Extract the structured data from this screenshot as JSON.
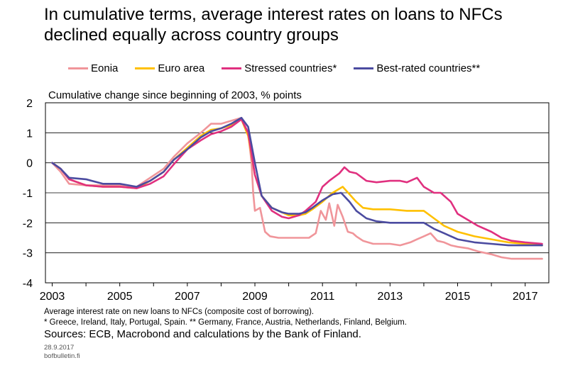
{
  "title_line1": "In cumulative terms, average interest rates on loans to NFCs",
  "title_line2": "declined equally across country groups",
  "colors": {
    "eonia": "#f0959a",
    "euro_area": "#ffc000",
    "stressed": "#e0307f",
    "best_rated": "#4b4ba0",
    "axis": "#000000",
    "grid": "#000000"
  },
  "footnote_line1": "Average interest rate on new loans to NFCs (composite cost of borrowing).",
  "footnote_line2": "* Greece, Ireland, Italy, Portugal, Spain. ** Germany, France, Austria, Netherlands, Finland, Belgium.",
  "sources": "Sources: ECB, Macrobond and calculations by the Bank of Finland.",
  "date": "28.9.2017",
  "site": "bofbulletin.fi",
  "chart_data": {
    "type": "line",
    "ylabel": "Cumulative change since beginning of 2003, % points",
    "ylim": [
      -4,
      2
    ],
    "xlim": [
      2002.8,
      2017.7
    ],
    "yticks": [
      "2",
      "1",
      "0",
      "-1",
      "-2",
      "-3",
      "-4"
    ],
    "ytick_values": [
      2,
      1,
      0,
      -1,
      -2,
      -3,
      -4
    ],
    "xticks": [
      "2003",
      "2005",
      "2007",
      "2009",
      "2011",
      "2013",
      "2015",
      "2017"
    ],
    "xtick_values": [
      2003,
      2005,
      2007,
      2009,
      2011,
      2013,
      2015,
      2017
    ],
    "grid": "horizontal",
    "legend_position": "top",
    "series": [
      {
        "name": "Eonia",
        "color_key": "eonia",
        "points": [
          [
            2003.0,
            0.0
          ],
          [
            2003.25,
            -0.3
          ],
          [
            2003.5,
            -0.7
          ],
          [
            2004.0,
            -0.75
          ],
          [
            2004.5,
            -0.75
          ],
          [
            2005.0,
            -0.75
          ],
          [
            2005.5,
            -0.8
          ],
          [
            2005.9,
            -0.5
          ],
          [
            2006.3,
            -0.2
          ],
          [
            2006.6,
            0.2
          ],
          [
            2007.0,
            0.65
          ],
          [
            2007.4,
            1.0
          ],
          [
            2007.7,
            1.3
          ],
          [
            2008.0,
            1.3
          ],
          [
            2008.3,
            1.4
          ],
          [
            2008.6,
            1.5
          ],
          [
            2008.8,
            1.0
          ],
          [
            2008.9,
            0.0
          ],
          [
            2008.95,
            -1.0
          ],
          [
            2009.0,
            -1.6
          ],
          [
            2009.15,
            -1.5
          ],
          [
            2009.3,
            -2.3
          ],
          [
            2009.45,
            -2.45
          ],
          [
            2009.7,
            -2.5
          ],
          [
            2010.0,
            -2.5
          ],
          [
            2010.3,
            -2.5
          ],
          [
            2010.6,
            -2.5
          ],
          [
            2010.8,
            -2.35
          ],
          [
            2010.95,
            -1.6
          ],
          [
            2011.1,
            -1.9
          ],
          [
            2011.2,
            -1.35
          ],
          [
            2011.35,
            -2.1
          ],
          [
            2011.45,
            -1.4
          ],
          [
            2011.6,
            -1.8
          ],
          [
            2011.75,
            -2.3
          ],
          [
            2011.9,
            -2.35
          ],
          [
            2012.0,
            -2.45
          ],
          [
            2012.2,
            -2.6
          ],
          [
            2012.5,
            -2.7
          ],
          [
            2013.0,
            -2.7
          ],
          [
            2013.3,
            -2.75
          ],
          [
            2013.6,
            -2.65
          ],
          [
            2013.8,
            -2.55
          ],
          [
            2014.0,
            -2.45
          ],
          [
            2014.2,
            -2.35
          ],
          [
            2014.4,
            -2.6
          ],
          [
            2014.6,
            -2.65
          ],
          [
            2014.8,
            -2.75
          ],
          [
            2015.0,
            -2.8
          ],
          [
            2015.3,
            -2.85
          ],
          [
            2015.6,
            -2.95
          ],
          [
            2016.0,
            -3.05
          ],
          [
            2016.3,
            -3.15
          ],
          [
            2016.6,
            -3.2
          ],
          [
            2017.0,
            -3.2
          ],
          [
            2017.5,
            -3.2
          ]
        ]
      },
      {
        "name": "Euro area",
        "color_key": "euro_area",
        "points": [
          [
            2003.0,
            0.0
          ],
          [
            2003.25,
            -0.2
          ],
          [
            2003.5,
            -0.55
          ],
          [
            2004.0,
            -0.75
          ],
          [
            2004.5,
            -0.8
          ],
          [
            2005.0,
            -0.8
          ],
          [
            2005.5,
            -0.85
          ],
          [
            2005.9,
            -0.6
          ],
          [
            2006.3,
            -0.3
          ],
          [
            2006.6,
            0.1
          ],
          [
            2007.0,
            0.5
          ],
          [
            2007.4,
            0.9
          ],
          [
            2007.7,
            1.1
          ],
          [
            2008.0,
            1.15
          ],
          [
            2008.3,
            1.25
          ],
          [
            2008.6,
            1.45
          ],
          [
            2008.8,
            0.9
          ],
          [
            2009.0,
            -0.4
          ],
          [
            2009.2,
            -1.1
          ],
          [
            2009.5,
            -1.5
          ],
          [
            2009.8,
            -1.65
          ],
          [
            2010.0,
            -1.75
          ],
          [
            2010.3,
            -1.75
          ],
          [
            2010.5,
            -1.7
          ],
          [
            2010.7,
            -1.55
          ],
          [
            2011.0,
            -1.3
          ],
          [
            2011.3,
            -1.0
          ],
          [
            2011.6,
            -0.8
          ],
          [
            2011.8,
            -1.05
          ],
          [
            2012.0,
            -1.3
          ],
          [
            2012.2,
            -1.5
          ],
          [
            2012.5,
            -1.55
          ],
          [
            2013.0,
            -1.55
          ],
          [
            2013.5,
            -1.6
          ],
          [
            2014.0,
            -1.6
          ],
          [
            2014.3,
            -1.85
          ],
          [
            2014.6,
            -2.1
          ],
          [
            2015.0,
            -2.3
          ],
          [
            2015.5,
            -2.45
          ],
          [
            2016.0,
            -2.55
          ],
          [
            2016.5,
            -2.65
          ],
          [
            2017.0,
            -2.7
          ],
          [
            2017.5,
            -2.75
          ]
        ]
      },
      {
        "name": "Stressed countries*",
        "color_key": "stressed",
        "points": [
          [
            2003.0,
            0.0
          ],
          [
            2003.25,
            -0.2
          ],
          [
            2003.5,
            -0.55
          ],
          [
            2004.0,
            -0.75
          ],
          [
            2004.5,
            -0.8
          ],
          [
            2005.0,
            -0.8
          ],
          [
            2005.5,
            -0.85
          ],
          [
            2005.9,
            -0.7
          ],
          [
            2006.3,
            -0.45
          ],
          [
            2006.6,
            -0.05
          ],
          [
            2007.0,
            0.45
          ],
          [
            2007.4,
            0.75
          ],
          [
            2007.7,
            0.95
          ],
          [
            2008.0,
            1.05
          ],
          [
            2008.3,
            1.2
          ],
          [
            2008.6,
            1.45
          ],
          [
            2008.8,
            1.0
          ],
          [
            2009.0,
            -0.4
          ],
          [
            2009.2,
            -1.1
          ],
          [
            2009.5,
            -1.6
          ],
          [
            2009.8,
            -1.8
          ],
          [
            2010.0,
            -1.85
          ],
          [
            2010.3,
            -1.75
          ],
          [
            2010.5,
            -1.6
          ],
          [
            2010.8,
            -1.3
          ],
          [
            2011.0,
            -0.8
          ],
          [
            2011.2,
            -0.6
          ],
          [
            2011.5,
            -0.35
          ],
          [
            2011.65,
            -0.15
          ],
          [
            2011.8,
            -0.3
          ],
          [
            2012.0,
            -0.35
          ],
          [
            2012.3,
            -0.6
          ],
          [
            2012.6,
            -0.65
          ],
          [
            2013.0,
            -0.6
          ],
          [
            2013.3,
            -0.6
          ],
          [
            2013.5,
            -0.65
          ],
          [
            2013.8,
            -0.5
          ],
          [
            2014.0,
            -0.8
          ],
          [
            2014.3,
            -1.0
          ],
          [
            2014.5,
            -1.0
          ],
          [
            2014.8,
            -1.3
          ],
          [
            2015.0,
            -1.7
          ],
          [
            2015.3,
            -1.9
          ],
          [
            2015.6,
            -2.1
          ],
          [
            2016.0,
            -2.3
          ],
          [
            2016.3,
            -2.5
          ],
          [
            2016.6,
            -2.6
          ],
          [
            2017.0,
            -2.65
          ],
          [
            2017.5,
            -2.7
          ]
        ]
      },
      {
        "name": "Best-rated countries**",
        "color_key": "best_rated",
        "points": [
          [
            2003.0,
            0.0
          ],
          [
            2003.25,
            -0.2
          ],
          [
            2003.5,
            -0.5
          ],
          [
            2004.0,
            -0.55
          ],
          [
            2004.5,
            -0.7
          ],
          [
            2005.0,
            -0.7
          ],
          [
            2005.5,
            -0.8
          ],
          [
            2005.9,
            -0.6
          ],
          [
            2006.3,
            -0.3
          ],
          [
            2006.6,
            0.1
          ],
          [
            2007.0,
            0.45
          ],
          [
            2007.4,
            0.85
          ],
          [
            2007.7,
            1.05
          ],
          [
            2008.0,
            1.15
          ],
          [
            2008.3,
            1.3
          ],
          [
            2008.6,
            1.5
          ],
          [
            2008.8,
            1.2
          ],
          [
            2009.0,
            0.0
          ],
          [
            2009.2,
            -1.1
          ],
          [
            2009.5,
            -1.5
          ],
          [
            2009.8,
            -1.65
          ],
          [
            2010.0,
            -1.7
          ],
          [
            2010.3,
            -1.7
          ],
          [
            2010.5,
            -1.65
          ],
          [
            2010.7,
            -1.5
          ],
          [
            2011.0,
            -1.25
          ],
          [
            2011.3,
            -1.05
          ],
          [
            2011.55,
            -1.0
          ],
          [
            2011.8,
            -1.3
          ],
          [
            2012.0,
            -1.6
          ],
          [
            2012.3,
            -1.85
          ],
          [
            2012.6,
            -1.95
          ],
          [
            2013.0,
            -2.0
          ],
          [
            2013.5,
            -2.0
          ],
          [
            2014.0,
            -2.0
          ],
          [
            2014.3,
            -2.2
          ],
          [
            2014.6,
            -2.35
          ],
          [
            2015.0,
            -2.55
          ],
          [
            2015.5,
            -2.65
          ],
          [
            2016.0,
            -2.7
          ],
          [
            2016.5,
            -2.75
          ],
          [
            2017.0,
            -2.75
          ],
          [
            2017.5,
            -2.75
          ]
        ]
      }
    ]
  }
}
